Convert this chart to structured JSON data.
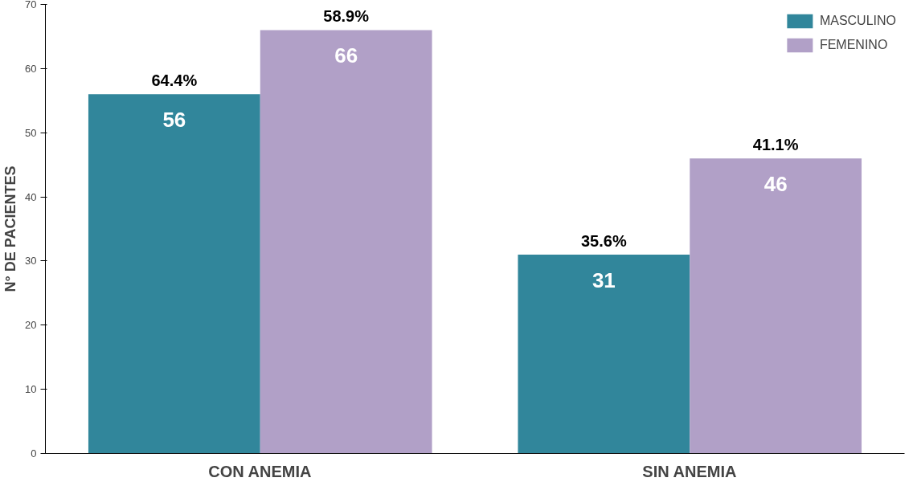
{
  "chart_data": {
    "type": "bar",
    "ylabel": "N° DE PACIENTES",
    "categories": [
      "CON ANEMIA",
      "SIN ANEMIA"
    ],
    "series": [
      {
        "name": "MASCULINO",
        "color": "#31869b",
        "values": [
          56,
          31
        ]
      },
      {
        "name": "FEMENINO",
        "color": "#b1a0c7",
        "values": [
          66,
          46
        ]
      }
    ],
    "annotations": [
      "64.4%",
      "58.9%",
      "35.6%",
      "41.1%"
    ],
    "ylim": [
      0,
      70
    ],
    "yticks": [
      0,
      10,
      20,
      30,
      40,
      50,
      60,
      70
    ],
    "grid": false,
    "legend": "top right",
    "data_labels": true
  }
}
